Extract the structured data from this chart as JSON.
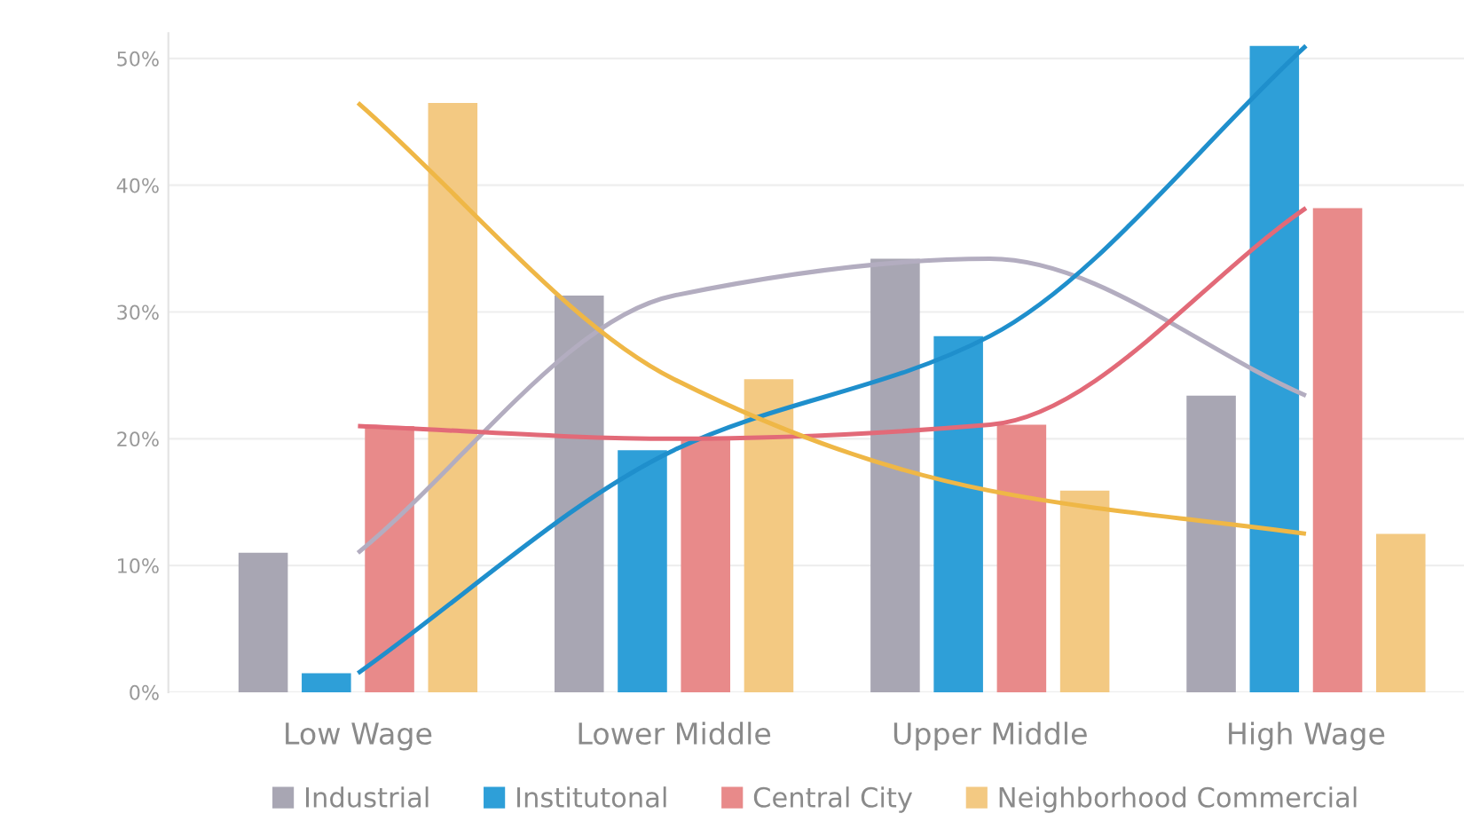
{
  "chart_data": {
    "type": "bar",
    "categories": [
      "Low Wage",
      "Lower Middle",
      "Upper Middle",
      "High Wage"
    ],
    "series": [
      {
        "name": "Industrial",
        "color": "#a8a6b3",
        "values": [
          11,
          31.3,
          34.2,
          23.4
        ]
      },
      {
        "name": "Institutonal",
        "color": "#2e9fd8",
        "values": [
          1.5,
          19.1,
          28.1,
          51
        ]
      },
      {
        "name": "Central City",
        "color": "#e88a8a",
        "values": [
          21,
          20,
          21.1,
          38.2
        ]
      },
      {
        "name": "Neighborhood Commercial",
        "color": "#f3c982",
        "values": [
          46.5,
          24.7,
          15.9,
          12.5
        ]
      },
      {
        "type": "line",
        "color": "#b3adc0",
        "values": [
          11,
          31.3,
          34.2,
          23.4
        ]
      },
      {
        "type": "line",
        "color": "#1f8fcc",
        "values": [
          1.5,
          19.1,
          28.1,
          51
        ]
      },
      {
        "type": "line",
        "color": "#e26a78",
        "values": [
          21,
          20,
          21.1,
          38.2
        ]
      },
      {
        "type": "line",
        "color": "#efb746",
        "values": [
          46.5,
          24.7,
          15.9,
          12.5
        ]
      }
    ],
    "ylim": [
      0,
      52
    ],
    "yticks": [
      {
        "value": 0,
        "label": "0%"
      },
      {
        "value": 10,
        "label": "10%"
      },
      {
        "value": 20,
        "label": "20%"
      },
      {
        "value": 30,
        "label": "30%"
      },
      {
        "value": 40,
        "label": "40%"
      },
      {
        "value": 50,
        "label": "50%"
      }
    ],
    "grid": "y",
    "legend": "bottom"
  }
}
